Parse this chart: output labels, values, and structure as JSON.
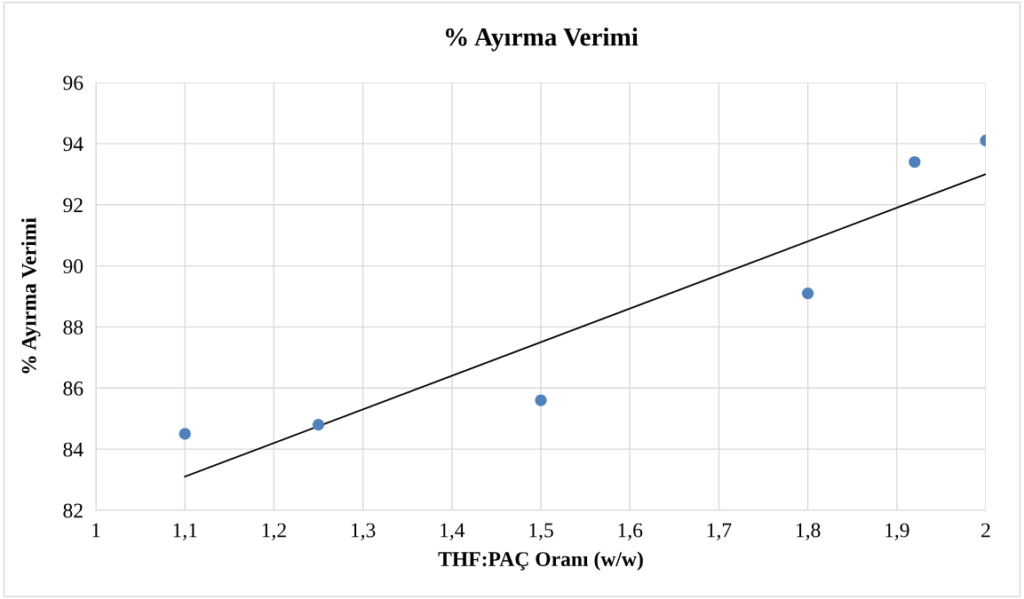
{
  "chart_data": {
    "type": "scatter",
    "title": "% Ayırma Verimi",
    "xlabel": "THF:PAÇ Oranı (w/w)",
    "ylabel": "% Ayırma Verimi",
    "series": [
      {
        "color": "#4f81bd",
        "marker": "circle",
        "x": [
          1.1,
          1.25,
          1.5,
          1.8,
          1.92,
          2.0
        ],
        "values": [
          84.5,
          84.8,
          85.6,
          89.1,
          93.4,
          94.1
        ]
      },
      {
        "type": "line",
        "color": "#000000",
        "marker": "none",
        "line_style": "solid",
        "x": [
          1.1,
          2.0
        ],
        "values": [
          83.1,
          93.0
        ]
      }
    ],
    "xlim": [
      1,
      2
    ],
    "xticks": [
      1,
      {
        "value": 1.1,
        "label": "1,1"
      },
      {
        "value": 1.2,
        "label": "1,2"
      },
      {
        "value": 1.3,
        "label": "1,3"
      },
      {
        "value": 1.4,
        "label": "1,4"
      },
      {
        "value": 1.5,
        "label": "1,5"
      },
      {
        "value": 1.6,
        "label": "1,6"
      },
      {
        "value": 1.7,
        "label": "1,7"
      },
      {
        "value": 1.8,
        "label": "1,8"
      },
      {
        "value": 1.9,
        "label": "1,9"
      },
      2
    ],
    "ylim": [
      82,
      96
    ],
    "yticks": [
      82,
      84,
      86,
      88,
      90,
      92,
      94,
      96
    ],
    "grid": true
  }
}
